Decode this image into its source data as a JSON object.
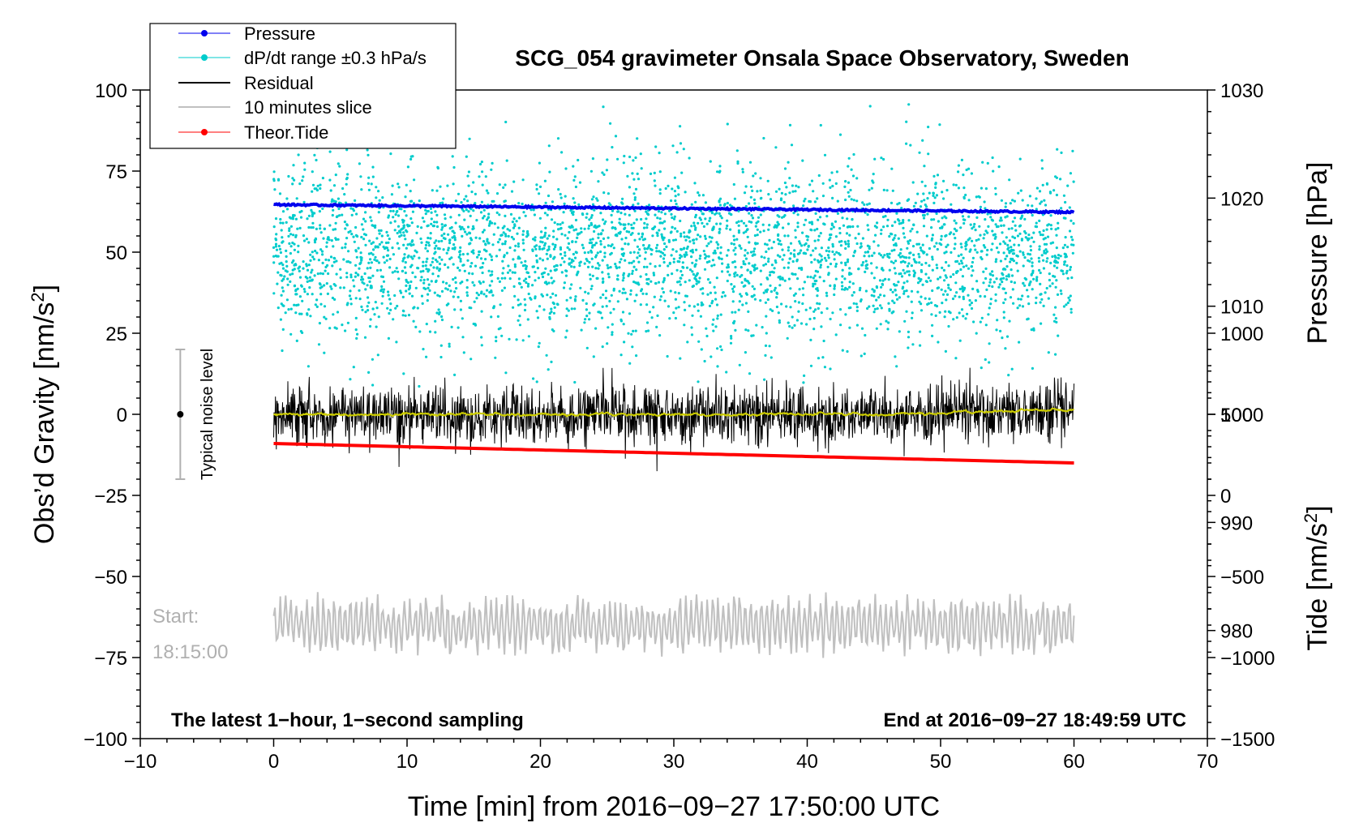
{
  "colors": {
    "pressure": "#0000ee",
    "dpdt": "#00cccc",
    "residual": "#000000",
    "slice": "#c0c0c0",
    "tide": "#ff0000",
    "smooth": "#cccc00"
  },
  "chart_data": {
    "type": "line",
    "title": "SCG_054 gravimeter Onsala Space Observatory, Sweden",
    "xlabel": "Time [min] from 2016−09−27 17:50:00 UTC",
    "ylabel_left": "Obs’d Gravity [nm/s",
    "ylabel_left_sup": "2",
    "ylabel_left_end": "]",
    "ylabel_right_pressure": "Pressure [hPa]",
    "ylabel_right_tide": "Tide [nm/s",
    "ylabel_right_tide_sup": "2",
    "ylabel_right_tide_end": "]",
    "xlim": [
      -10,
      70
    ],
    "ylim_left": [
      -100,
      100
    ],
    "ylim_pressure": [
      970,
      1030
    ],
    "ylim_tide": [
      -1500,
      2500
    ],
    "x_ticks": [
      "−10",
      "0",
      "10",
      "20",
      "30",
      "40",
      "50",
      "60",
      "70"
    ],
    "x_tick_values": [
      -10,
      0,
      10,
      20,
      30,
      40,
      50,
      60,
      70
    ],
    "y_ticks_left": [
      "−100",
      "−75",
      "−50",
      "−25",
      "0",
      "25",
      "50",
      "75",
      "100"
    ],
    "y_tick_values_left": [
      -100,
      -75,
      -50,
      -25,
      0,
      25,
      50,
      75,
      100
    ],
    "pressure_ticks": [
      "980",
      "990",
      "1000",
      "1010",
      "1020",
      "1030"
    ],
    "pressure_tick_values": [
      980,
      990,
      1000,
      1010,
      1020,
      1030
    ],
    "tide_ticks": [
      "−1500",
      "−1000",
      "−500",
      "0",
      "500",
      "1000"
    ],
    "tide_tick_values": [
      -1500,
      -1000,
      -500,
      0,
      500,
      1000
    ],
    "series": [
      {
        "name": "Pressure",
        "axis": "pressure",
        "x": [
          0,
          60
        ],
        "y": [
          1019.4,
          1018.7
        ]
      },
      {
        "name": "dP/dt range ±0.3 hPa/s",
        "axis": "left",
        "center": 50,
        "spread": 27,
        "x_range": [
          0,
          60
        ]
      },
      {
        "name": "Residual",
        "axis": "left",
        "center": 0,
        "amplitude": 8,
        "x_range": [
          0,
          60
        ]
      },
      {
        "name": "10 minutes slice",
        "axis": "left",
        "center": -65,
        "amplitude": 8,
        "x_range": [
          0,
          60
        ]
      },
      {
        "name": "Theor.Tide",
        "axis": "tide",
        "x": [
          0,
          60
        ],
        "y": [
          320,
          200
        ]
      }
    ],
    "legend": {
      "position": "top-left",
      "entries": [
        "Pressure",
        "dP/dt range ±0.3 hPa/s",
        "Residual",
        "10 minutes slice",
        "Theor.Tide"
      ]
    },
    "annotations": {
      "noise_label": "Typical noise level",
      "noise_range": [
        -20,
        20
      ],
      "noise_x": -7,
      "start_label": "Start:",
      "start_time": "18:15:00",
      "bottom_left": "The latest 1−hour, 1−second sampling",
      "bottom_right": "End at 2016−09−27 18:49:59 UTC"
    }
  }
}
